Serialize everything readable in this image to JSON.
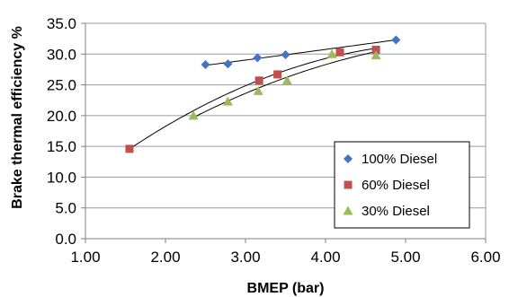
{
  "chart_data": {
    "type": "scatter",
    "title": "",
    "xlabel": "BMEP (bar)",
    "ylabel": "Brake thermal efficiency %",
    "xlim": [
      1.0,
      6.0
    ],
    "ylim": [
      0.0,
      35.0
    ],
    "x_ticks": [
      "1.00",
      "2.00",
      "3.00",
      "4.00",
      "5.00",
      "6.00"
    ],
    "y_ticks": [
      "0.0",
      "5.0",
      "10.0",
      "15.0",
      "20.0",
      "25.0",
      "30.0",
      "35.0"
    ],
    "grid": "y-major",
    "legend_position": "lower-right",
    "series": [
      {
        "name": "100% Diesel",
        "marker": "diamond",
        "color": "#4472C4",
        "trendline": "polynomial",
        "x": [
          2.5,
          2.78,
          3.15,
          3.5,
          4.88
        ],
        "y": [
          28.3,
          28.4,
          29.4,
          29.9,
          32.3
        ]
      },
      {
        "name": "60% Diesel",
        "marker": "square",
        "color": "#C0504D",
        "trendline": "polynomial",
        "x": [
          1.55,
          3.17,
          3.4,
          4.18,
          4.63
        ],
        "y": [
          14.6,
          25.7,
          26.7,
          30.3,
          30.7
        ]
      },
      {
        "name": "30% Diesel",
        "marker": "triangle",
        "color": "#9BBB59",
        "trendline": "polynomial",
        "x": [
          2.35,
          2.78,
          3.16,
          3.52,
          4.08,
          4.63
        ],
        "y": [
          20.0,
          22.3,
          24.0,
          25.7,
          30.0,
          29.8
        ]
      }
    ]
  }
}
